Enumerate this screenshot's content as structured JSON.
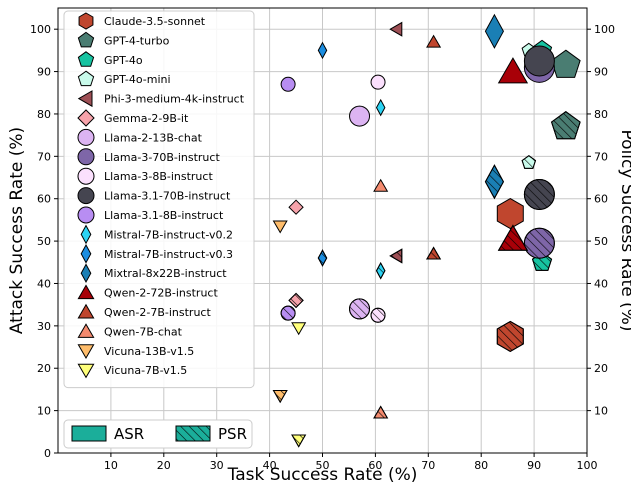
{
  "chart_data": {
    "type": "scatter",
    "xlabel": "Task Success Rate (%)",
    "ylabel": "Attack Success Rate (%)",
    "y2label": "Policy Success Rate (%)",
    "xlim": [
      0,
      100
    ],
    "ylim": [
      0,
      105
    ],
    "xticks": [
      10,
      20,
      30,
      40,
      50,
      60,
      70,
      80,
      90,
      100
    ],
    "yticks": [
      0,
      10,
      20,
      30,
      40,
      50,
      60,
      70,
      80,
      90,
      100
    ],
    "y2ticks": [
      10,
      20,
      30,
      40,
      50,
      60,
      70,
      80,
      90,
      100
    ],
    "grid": true,
    "legend_position": "upper-left",
    "style_legend": {
      "position": "lower-left",
      "entries": [
        {
          "label": "ASR",
          "hatched": false,
          "color": "#1bae9a"
        },
        {
          "label": "PSR",
          "hatched": true,
          "color": "#1bae9a"
        }
      ]
    },
    "series": [
      {
        "name": "Claude-3.5-sonnet",
        "marker": "hexagon",
        "color": "#c0462e",
        "size": "large",
        "asr": [
          [
            85.5,
            56.5
          ]
        ],
        "psr": [
          [
            85.5,
            27.5
          ]
        ]
      },
      {
        "name": "GPT-4-turbo",
        "marker": "pentagon",
        "color": "#4a7d72",
        "size": "large",
        "asr": [
          [
            96,
            91.5
          ]
        ],
        "psr": [
          [
            96,
            77
          ]
        ]
      },
      {
        "name": "GPT-4o",
        "marker": "pentagon",
        "color": "#17c3a1",
        "size": "medium",
        "asr": [
          [
            91.5,
            95
          ]
        ],
        "psr": [
          [
            91.5,
            45
          ]
        ]
      },
      {
        "name": "GPT-4o-mini",
        "marker": "pentagon",
        "color": "#c9fbeb",
        "size": "small",
        "asr": [
          [
            89,
            95
          ]
        ],
        "psr": [
          [
            89,
            68.5
          ]
        ]
      },
      {
        "name": "Phi-3-medium-4k-instruct",
        "marker": "triangle-left",
        "color": "#9e4f55",
        "size": "small",
        "asr": [
          [
            64,
            100
          ]
        ],
        "psr": [
          [
            64,
            46.5
          ]
        ]
      },
      {
        "name": "Gemma-2-9B-it",
        "marker": "diamond",
        "color": "#f7a3ab",
        "size": "small",
        "asr": [
          [
            45,
            58
          ]
        ],
        "psr": [
          [
            45,
            36
          ]
        ]
      },
      {
        "name": "Llama-2-13B-chat",
        "marker": "circle",
        "color": "#dcb4f2",
        "size": "medium",
        "asr": [
          [
            57,
            79.5
          ]
        ],
        "psr": [
          [
            57,
            34
          ]
        ]
      },
      {
        "name": "Llama-3-70B-instruct",
        "marker": "circle",
        "color": "#7e66a8",
        "size": "large",
        "asr": [
          [
            91,
            91
          ]
        ],
        "psr": [
          [
            91,
            49.5
          ]
        ]
      },
      {
        "name": "Llama-3-8B-instruct",
        "marker": "circle",
        "color": "#fbe0fd",
        "size": "small",
        "asr": [
          [
            60.5,
            87.5
          ]
        ],
        "psr": [
          [
            60.5,
            32.5
          ]
        ]
      },
      {
        "name": "Llama-3.1-70B-instruct",
        "marker": "circle",
        "color": "#454550",
        "size": "large",
        "asr": [
          [
            91,
            92.5
          ]
        ],
        "psr": [
          [
            91,
            61
          ]
        ]
      },
      {
        "name": "Llama-3.1-8B-instruct",
        "marker": "circle",
        "color": "#b88df2",
        "size": "small",
        "asr": [
          [
            43.5,
            87
          ]
        ],
        "psr": [
          [
            43.5,
            33
          ]
        ]
      },
      {
        "name": "Mistral-7B-instruct-v0.2",
        "marker": "thin-diamond",
        "color": "#2bd3f3",
        "size": "small",
        "asr": [
          [
            61,
            81.5
          ]
        ],
        "psr": [
          [
            61,
            43
          ]
        ]
      },
      {
        "name": "Mistral-7B-instruct-v0.3",
        "marker": "thin-diamond",
        "color": "#1b8de0",
        "size": "small",
        "asr": [
          [
            50,
            95
          ]
        ],
        "psr": [
          [
            50,
            46
          ]
        ]
      },
      {
        "name": "Mixtral-8x22B-instruct",
        "marker": "thin-diamond",
        "color": "#1a7fb5",
        "size": "large",
        "asr": [
          [
            82.5,
            99.5
          ]
        ],
        "psr": [
          [
            82.5,
            64
          ]
        ]
      },
      {
        "name": "Qwen-2-72B-instruct",
        "marker": "triangle-up",
        "color": "#a80008",
        "size": "large",
        "asr": [
          [
            86,
            90
          ]
        ],
        "psr": [
          [
            86,
            50.5
          ]
        ]
      },
      {
        "name": "Qwen-2-7B-instruct",
        "marker": "triangle-up",
        "color": "#c0462e",
        "size": "small",
        "asr": [
          [
            71,
            97
          ]
        ],
        "psr": [
          [
            71,
            47
          ]
        ]
      },
      {
        "name": "Qwen-7B-chat",
        "marker": "triangle-up",
        "color": "#f38a6e",
        "size": "small",
        "asr": [
          [
            61,
            63
          ]
        ],
        "psr": [
          [
            61,
            9.5
          ]
        ]
      },
      {
        "name": "Vicuna-13B-v1.5",
        "marker": "triangle-down",
        "color": "#ffbd6b",
        "size": "small",
        "asr": [
          [
            42,
            53.5
          ]
        ],
        "psr": [
          [
            42,
            13.5
          ]
        ]
      },
      {
        "name": "Vicuna-7B-v1.5",
        "marker": "triangle-down",
        "color": "#ffff7a",
        "size": "small",
        "asr": [
          [
            45.5,
            29.5
          ]
        ],
        "psr": [
          [
            45.5,
            3
          ]
        ]
      }
    ]
  }
}
